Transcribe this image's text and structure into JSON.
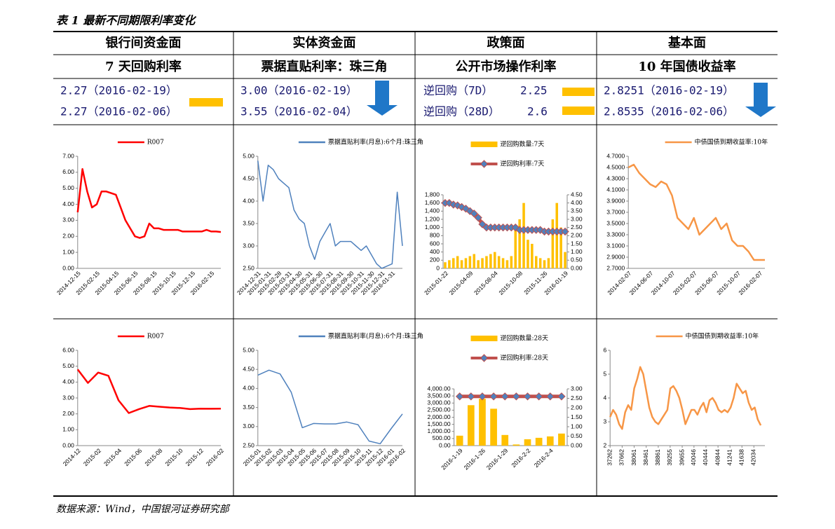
{
  "title": "表 1 最新不同期限利率变化",
  "source": "数据来源：Wind，中国银河证券研究部",
  "columns": [
    {
      "header": "银行间资金面",
      "subheader": "7 天回购利率",
      "rows": [
        "2.27（2016-02-19）",
        "2.27（2016-02-06）"
      ]
    },
    {
      "header": "实体资金面",
      "subheader": "票据直贴利率：珠三角",
      "rows": [
        "3.00（2016-02-19）",
        "3.55（2016-02-04）"
      ]
    },
    {
      "header": "政策面",
      "subheader": "公开市场操作利率",
      "rows": [
        {
          "label": "逆回购（7D）",
          "value": 2.25
        },
        {
          "label": "逆回购（28D）",
          "value": 2.6
        }
      ]
    },
    {
      "header": "基本面",
      "subheader": "10 年国债收益率",
      "rows": [
        "2.8251（2016-02-19）",
        "2.8535（2016-02-06）"
      ]
    }
  ],
  "chart_data": [
    {
      "type": "line",
      "categories": [
        "2014-12-15",
        null,
        null,
        null,
        "2015-02-15",
        null,
        null,
        null,
        "2015-04-15",
        null,
        null,
        null,
        "2015-06-15",
        null,
        null,
        null,
        "2015-08-15",
        null,
        null,
        null,
        "2015-10-15",
        null,
        null,
        null,
        "2015-12-15",
        null,
        null,
        null,
        "2016-02-15",
        null,
        null
      ],
      "series": [
        {
          "name": "R007",
          "color": "#ff0000",
          "values": [
            3.5,
            6.2,
            4.8,
            3.8,
            4.0,
            4.8,
            4.8,
            4.7,
            4.6,
            3.8,
            3.0,
            2.5,
            2.0,
            1.9,
            2.0,
            2.8,
            2.5,
            2.5,
            2.4,
            2.4,
            2.4,
            2.4,
            2.3,
            2.3,
            2.3,
            2.3,
            2.3,
            2.4,
            2.3,
            2.3,
            2.27
          ]
        }
      ],
      "ylim": [
        0,
        7
      ],
      "yticks": [
        {
          "value": 0,
          "label": "0.00"
        },
        {
          "value": 1,
          "label": "1.00"
        },
        {
          "value": 2,
          "label": "2.00"
        },
        {
          "value": 3,
          "label": "3.00"
        },
        {
          "value": 4,
          "label": "4.00"
        },
        {
          "value": 5,
          "label": "5.00"
        },
        {
          "value": 6,
          "label": "6.00"
        },
        {
          "value": 7,
          "label": "7.00"
        }
      ]
    },
    {
      "type": "line",
      "categories": [
        "2014-12-31",
        null,
        "2015-01-31",
        null,
        "2015-02-28",
        null,
        "2015-03-31",
        null,
        "2015-04-30",
        null,
        "2015-05-31",
        null,
        "2015-06-30",
        null,
        "2015-07-31",
        null,
        "2015-08-31",
        null,
        "2015-09-30",
        null,
        "2015-10-31",
        null,
        "2015-11-30",
        null,
        "2015-12-31",
        null,
        "2016-01-31",
        null,
        null
      ],
      "series": [
        {
          "name": "票据直贴利率(月息):6个月:珠三角",
          "color": "#4f81bd",
          "values": [
            4.9,
            4.0,
            4.8,
            4.7,
            4.5,
            4.4,
            4.3,
            3.8,
            3.6,
            3.5,
            3.0,
            2.7,
            3.1,
            3.3,
            3.5,
            3.0,
            3.1,
            3.1,
            3.1,
            3.0,
            2.9,
            3.0,
            2.8,
            2.6,
            2.5,
            2.55,
            2.6,
            4.2,
            3.0
          ]
        }
      ],
      "ylim": [
        2.5,
        5
      ],
      "yticks": [
        {
          "value": 2.5,
          "label": "2.50"
        },
        {
          "value": 3,
          "label": "3.00"
        },
        {
          "value": 3.5,
          "label": "3.50"
        },
        {
          "value": 4,
          "label": "4.00"
        },
        {
          "value": 4.5,
          "label": "4.50"
        },
        {
          "value": 5,
          "label": "5.00"
        }
      ]
    },
    {
      "type": "combo",
      "categories": [
        "2015-01-22",
        null,
        null,
        null,
        null,
        null,
        "2015-04-09",
        null,
        null,
        null,
        null,
        null,
        "2015-08-04",
        null,
        null,
        null,
        null,
        null,
        "2015-10-08",
        null,
        null,
        null,
        null,
        null,
        "2015-11-26",
        null,
        null,
        null,
        null,
        "2016-01-19"
      ],
      "series": [
        {
          "name": "逆回购数量:7天",
          "type": "bar",
          "color": "#ffc000",
          "values": [
            150,
            200,
            250,
            300,
            200,
            250,
            300,
            350,
            200,
            250,
            300,
            350,
            400,
            300,
            250,
            200,
            300,
            1000,
            1200,
            1600,
            700,
            600,
            300,
            250,
            200,
            250,
            1200,
            1600,
            1000,
            400
          ]
        },
        {
          "name": "逆回购利率:7天",
          "type": "line",
          "marker": "diamond",
          "axis": "y2",
          "color": "#c0504d",
          "values": [
            4.0,
            4.0,
            3.9,
            3.85,
            3.75,
            3.65,
            3.5,
            3.35,
            3.1,
            2.7,
            2.5,
            2.5,
            2.5,
            2.5,
            2.5,
            2.5,
            2.5,
            2.5,
            2.35,
            2.35,
            2.35,
            2.35,
            2.35,
            2.35,
            2.25,
            2.25,
            2.25,
            2.25,
            2.25,
            2.25
          ]
        }
      ],
      "ylim": [
        0,
        1800
      ],
      "yticks": [
        0,
        200,
        400,
        600,
        800,
        {
          "value": 1000,
          "label": "1,000"
        },
        {
          "value": 1200,
          "label": "1,200"
        },
        {
          "value": 1400,
          "label": "1,400"
        },
        {
          "value": 1600,
          "label": "1,600"
        },
        {
          "value": 1800,
          "label": "1,800"
        }
      ],
      "y2lim": [
        0,
        4.5
      ],
      "y2ticks": [
        {
          "value": 0,
          "label": "0.00"
        },
        {
          "value": 0.5,
          "label": "0.50"
        },
        {
          "value": 1,
          "label": "1.00"
        },
        {
          "value": 1.5,
          "label": "1.50"
        },
        {
          "value": 2,
          "label": "2.00"
        },
        {
          "value": 2.5,
          "label": "2.50"
        },
        {
          "value": 3,
          "label": "3.00"
        },
        {
          "value": 3.5,
          "label": "3.50"
        },
        {
          "value": 4,
          "label": "4.00"
        },
        {
          "value": 4.5,
          "label": "4.50"
        }
      ]
    },
    {
      "type": "line",
      "categories": [
        "2014-02-07",
        null,
        null,
        null,
        "2014-06-07",
        null,
        null,
        null,
        "2014-10-07",
        null,
        null,
        null,
        "2015-02-07",
        null,
        null,
        null,
        "2015-06-07",
        null,
        null,
        null,
        "2015-10-07",
        null,
        null,
        null,
        "2016-02-07",
        null
      ],
      "series": [
        {
          "name": "中债国债到期收益率:10年",
          "color": "#f79646",
          "values": [
            4.5,
            4.55,
            4.4,
            4.3,
            4.2,
            4.15,
            4.25,
            4.2,
            4.0,
            3.6,
            3.5,
            3.4,
            3.6,
            3.3,
            3.4,
            3.5,
            3.6,
            3.4,
            3.5,
            3.2,
            3.1,
            3.1,
            3.0,
            2.85,
            2.85,
            2.85
          ]
        }
      ],
      "ylim": [
        2.7,
        4.7
      ],
      "yticks": [
        {
          "value": 2.7,
          "label": "2.7000"
        },
        {
          "value": 2.9,
          "label": "2.9000"
        },
        {
          "value": 3.1,
          "label": "3.1000"
        },
        {
          "value": 3.3,
          "label": "3.3000"
        },
        {
          "value": 3.5,
          "label": "3.5000"
        },
        {
          "value": 3.7,
          "label": "3.7000"
        },
        {
          "value": 3.9,
          "label": "3.9000"
        },
        {
          "value": 4.1,
          "label": "4.1000"
        },
        {
          "value": 4.3,
          "label": "4.3000"
        },
        {
          "value": 4.5,
          "label": "4.5000"
        },
        {
          "value": 4.7,
          "label": "4.7000"
        }
      ]
    },
    {
      "type": "line",
      "categories": [
        "2014-12",
        null,
        "2015-02",
        null,
        "2015-04",
        null,
        "2015-06",
        null,
        "2015-08",
        null,
        "2015-10",
        null,
        "2015-12",
        null,
        "2016-02"
      ],
      "series": [
        {
          "name": "R007",
          "color": "#ff0000",
          "values": [
            4.8,
            3.95,
            4.6,
            4.4,
            2.85,
            2.05,
            2.3,
            2.5,
            2.45,
            2.4,
            2.37,
            2.3,
            2.33,
            2.32,
            2.33
          ]
        }
      ],
      "ylim": [
        0,
        6
      ],
      "yticks": [
        {
          "value": 0,
          "label": "0.00"
        },
        {
          "value": 1,
          "label": "1.00"
        },
        {
          "value": 2,
          "label": "2.00"
        },
        {
          "value": 3,
          "label": "3.00"
        },
        {
          "value": 4,
          "label": "4.00"
        },
        {
          "value": 5,
          "label": "5.00"
        },
        {
          "value": 6,
          "label": "6.00"
        }
      ]
    },
    {
      "type": "line",
      "categories": [
        "2015-01",
        "2015-02",
        "2015-03",
        "2015-04",
        "2015-05",
        "2015-06",
        "2015-07",
        "2015-08",
        "2015-09",
        "2015-10",
        "2015-11",
        "2015-12",
        "2016-01",
        "2016-02"
      ],
      "series": [
        {
          "name": "票据直贴利率(月息):6个月:珠三角",
          "color": "#4f81bd",
          "values": [
            4.35,
            4.48,
            4.38,
            3.9,
            2.97,
            3.08,
            3.07,
            3.07,
            3.12,
            3.05,
            2.62,
            2.55,
            2.95,
            3.33
          ]
        }
      ],
      "ylim": [
        2.5,
        5
      ],
      "yticks": [
        {
          "value": 2.5,
          "label": "2.50"
        },
        {
          "value": 3,
          "label": "3.00"
        },
        {
          "value": 3.5,
          "label": "3.50"
        },
        {
          "value": 4,
          "label": "4.00"
        },
        {
          "value": 4.5,
          "label": "4.50"
        },
        {
          "value": 5,
          "label": "5.00"
        }
      ]
    },
    {
      "type": "combo",
      "categories": [
        "2016-1-19",
        null,
        "2016-1-26",
        null,
        "2016-1-29",
        null,
        "2016-2-2",
        null,
        "2016-2-4",
        null
      ],
      "series": [
        {
          "name": "逆回购数量:28天",
          "type": "bar",
          "color": "#ffc000",
          "values": [
            700,
            2850,
            3300,
            2600,
            750,
            80,
            450,
            550,
            650,
            850
          ]
        },
        {
          "name": "逆回购利率:28天",
          "type": "line",
          "marker": "diamond",
          "axis": "y2",
          "color": "#c0504d",
          "values": [
            2.6,
            2.6,
            2.6,
            2.6,
            2.6,
            2.6,
            2.6,
            2.6,
            2.6,
            2.6
          ]
        }
      ],
      "ylim": [
        0,
        4000
      ],
      "yticks": [
        {
          "value": 0,
          "label": "0.00"
        },
        {
          "value": 500,
          "label": "500.00"
        },
        {
          "value": 1000,
          "label": "1,000.00"
        },
        {
          "value": 1500,
          "label": "1,500.00"
        },
        {
          "value": 2000,
          "label": "2,000.00"
        },
        {
          "value": 2500,
          "label": "2,500.00"
        },
        {
          "value": 3000,
          "label": "3,000.00"
        },
        {
          "value": 3500,
          "label": "3,500.00"
        },
        {
          "value": 4000,
          "label": "4,000.00"
        }
      ],
      "y2lim": [
        0,
        3
      ],
      "y2ticks": [
        {
          "value": 0,
          "label": "0.00"
        },
        {
          "value": 0.5,
          "label": "0.50"
        },
        {
          "value": 1,
          "label": "1.00"
        },
        {
          "value": 1.5,
          "label": "1.50"
        },
        {
          "value": 2,
          "label": "2.00"
        },
        {
          "value": 2.5,
          "label": "2.50"
        },
        {
          "value": 3,
          "label": "3.00"
        }
      ]
    },
    {
      "type": "line",
      "x": [
        37262,
        37362,
        37462,
        37562,
        37662,
        37762,
        37862,
        37962,
        38062,
        38162,
        38262,
        38362,
        38462,
        38562,
        38662,
        38762,
        38862,
        38962,
        39062,
        39162,
        39262,
        39362,
        39462,
        39562,
        39662,
        39762,
        39862,
        39962,
        40062,
        40162,
        40262,
        40362,
        40462,
        40562,
        40662,
        40762,
        40862,
        40962,
        41062,
        41162,
        41262,
        41362,
        41462,
        41562,
        41662,
        41762,
        41862,
        41962,
        42062,
        42162,
        42262
      ],
      "series": [
        {
          "name": "中债国债到期收益率:10年",
          "color": "#f79646",
          "values": [
            3.2,
            3.5,
            3.3,
            2.9,
            2.7,
            3.4,
            3.7,
            3.5,
            4.4,
            4.8,
            5.3,
            5.0,
            4.3,
            3.6,
            3.2,
            3.0,
            2.9,
            3.1,
            3.3,
            3.5,
            4.4,
            4.5,
            4.3,
            4.0,
            3.5,
            2.9,
            3.2,
            3.5,
            3.5,
            3.3,
            3.6,
            3.8,
            3.4,
            3.9,
            4.0,
            3.8,
            3.5,
            3.4,
            3.5,
            3.4,
            3.6,
            4.0,
            4.6,
            4.4,
            4.2,
            4.3,
            3.8,
            3.5,
            3.6,
            3.1,
            2.85
          ]
        }
      ],
      "xlim": [
        37262,
        42400
      ],
      "xticks": [
        37262,
        37662,
        38061,
        38461,
        38861,
        39255,
        39655,
        40046,
        40444,
        40844,
        41241,
        41638,
        42034
      ],
      "ylim": [
        2,
        6
      ],
      "yticks": [
        2,
        3,
        4,
        5,
        6
      ]
    }
  ]
}
